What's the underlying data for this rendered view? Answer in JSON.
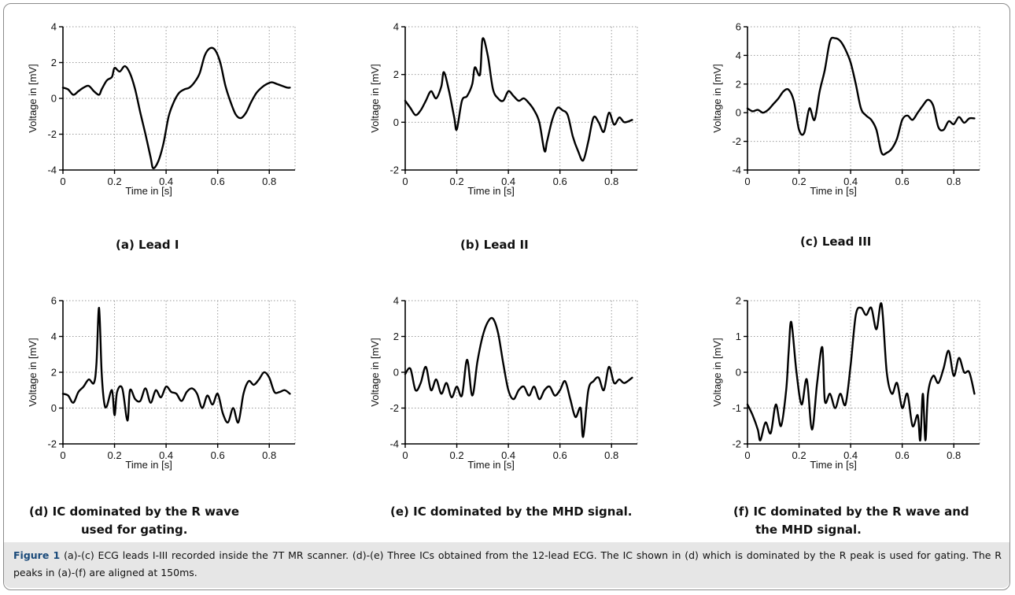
{
  "chart_data": [
    {
      "type": "line",
      "panel": "a",
      "caption": "(a) Lead I",
      "xlabel": "Time in [s]",
      "ylabel": "Voltage in [mV]",
      "xlim": [
        0,
        0.9
      ],
      "ylim": [
        -4,
        4
      ],
      "xticks": [
        0,
        0.2,
        0.4,
        0.6,
        0.8
      ],
      "xtick_labels": [
        "0",
        "0.2",
        "0.4",
        "0.6",
        "0.8"
      ],
      "yticks": [
        -4,
        -2,
        0,
        2,
        4
      ],
      "ytick_labels": [
        "-4",
        "-2",
        "0",
        "2",
        "4"
      ],
      "grid": "dotted",
      "series": [
        {
          "x": [
            0,
            0.02,
            0.04,
            0.06,
            0.08,
            0.1,
            0.12,
            0.14,
            0.15,
            0.17,
            0.19,
            0.2,
            0.22,
            0.24,
            0.26,
            0.28,
            0.3,
            0.32,
            0.34,
            0.35,
            0.37,
            0.39,
            0.41,
            0.43,
            0.45,
            0.47,
            0.49,
            0.51,
            0.53,
            0.55,
            0.57,
            0.59,
            0.61,
            0.63,
            0.65,
            0.67,
            0.69,
            0.71,
            0.73,
            0.75,
            0.77,
            0.79,
            0.81,
            0.83,
            0.85,
            0.87,
            0.88
          ],
          "y": [
            0.6,
            0.5,
            0.2,
            0.4,
            0.6,
            0.7,
            0.4,
            0.2,
            0.5,
            1.0,
            1.2,
            1.7,
            1.5,
            1.8,
            1.4,
            0.5,
            -0.8,
            -2.0,
            -3.3,
            -3.9,
            -3.5,
            -2.5,
            -1.0,
            -0.2,
            0.3,
            0.5,
            0.6,
            0.9,
            1.4,
            2.4,
            2.8,
            2.7,
            2.0,
            0.7,
            -0.2,
            -0.9,
            -1.1,
            -0.8,
            -0.2,
            0.3,
            0.6,
            0.8,
            0.9,
            0.8,
            0.7,
            0.6,
            0.6
          ]
        }
      ]
    },
    {
      "type": "line",
      "panel": "b",
      "caption": "(b) Lead II",
      "xlabel": "Time in [s]",
      "ylabel": "Voltage in [mV]",
      "xlim": [
        0,
        0.9
      ],
      "ylim": [
        -2,
        4
      ],
      "xticks": [
        0,
        0.2,
        0.4,
        0.6,
        0.8
      ],
      "xtick_labels": [
        "0",
        "0.2",
        "0.4",
        "0.6",
        "0.8"
      ],
      "yticks": [
        -2,
        0,
        2,
        4
      ],
      "ytick_labels": [
        "-2",
        "0",
        "2",
        "4"
      ],
      "grid": "dotted",
      "series": [
        {
          "x": [
            0,
            0.02,
            0.04,
            0.06,
            0.08,
            0.1,
            0.12,
            0.14,
            0.15,
            0.17,
            0.19,
            0.2,
            0.22,
            0.24,
            0.26,
            0.27,
            0.29,
            0.3,
            0.32,
            0.34,
            0.36,
            0.38,
            0.4,
            0.42,
            0.44,
            0.46,
            0.48,
            0.5,
            0.52,
            0.54,
            0.55,
            0.57,
            0.59,
            0.61,
            0.63,
            0.65,
            0.67,
            0.69,
            0.71,
            0.73,
            0.75,
            0.77,
            0.79,
            0.81,
            0.83,
            0.85,
            0.88
          ],
          "y": [
            0.9,
            0.6,
            0.3,
            0.5,
            0.9,
            1.3,
            1.0,
            1.5,
            2.1,
            1.3,
            0.2,
            -0.3,
            0.9,
            1.1,
            1.6,
            2.3,
            2.0,
            3.5,
            2.8,
            1.4,
            1.0,
            0.9,
            1.3,
            1.1,
            0.9,
            1.0,
            0.8,
            0.5,
            0.0,
            -1.2,
            -0.8,
            0.1,
            0.6,
            0.5,
            0.3,
            -0.6,
            -1.2,
            -1.6,
            -0.8,
            0.2,
            0.0,
            -0.4,
            0.4,
            -0.1,
            0.2,
            0.0,
            0.1
          ]
        }
      ]
    },
    {
      "type": "line",
      "panel": "c",
      "caption": "(c) Lead III",
      "xlabel": "Time in [s]",
      "ylabel": "Voltage in [mV]",
      "xlim": [
        0,
        0.9
      ],
      "ylim": [
        -4,
        6
      ],
      "xticks": [
        0,
        0.2,
        0.4,
        0.6,
        0.8
      ],
      "xtick_labels": [
        "0",
        "0.2",
        "0.4",
        "0.6",
        "0.8"
      ],
      "yticks": [
        -4,
        -2,
        0,
        2,
        4,
        6
      ],
      "ytick_labels": [
        "-4",
        "-2",
        "0",
        "2",
        "4",
        "6"
      ],
      "grid": "dotted",
      "series": [
        {
          "x": [
            0,
            0.02,
            0.04,
            0.06,
            0.08,
            0.1,
            0.12,
            0.14,
            0.16,
            0.18,
            0.2,
            0.22,
            0.24,
            0.26,
            0.28,
            0.3,
            0.32,
            0.34,
            0.36,
            0.38,
            0.4,
            0.42,
            0.44,
            0.46,
            0.48,
            0.5,
            0.52,
            0.54,
            0.56,
            0.58,
            0.6,
            0.62,
            0.64,
            0.66,
            0.68,
            0.7,
            0.72,
            0.74,
            0.76,
            0.78,
            0.8,
            0.82,
            0.84,
            0.86,
            0.88
          ],
          "y": [
            0.3,
            0.1,
            0.2,
            0.0,
            0.2,
            0.6,
            1.0,
            1.5,
            1.6,
            0.8,
            -1.2,
            -1.4,
            0.3,
            -0.5,
            1.5,
            3.0,
            5.0,
            5.2,
            5.0,
            4.4,
            3.5,
            2.0,
            0.3,
            -0.2,
            -0.5,
            -1.2,
            -2.8,
            -2.8,
            -2.5,
            -1.8,
            -0.5,
            -0.2,
            -0.5,
            0.0,
            0.5,
            0.9,
            0.5,
            -1.0,
            -1.2,
            -0.6,
            -0.8,
            -0.3,
            -0.7,
            -0.4,
            -0.4
          ]
        }
      ]
    },
    {
      "type": "line",
      "panel": "d",
      "caption": "(d) IC dominated by the R wave used for gating.",
      "xlabel": "Time in [s]",
      "ylabel": "Voltage in [mV]",
      "xlim": [
        0,
        0.9
      ],
      "ylim": [
        -2,
        6
      ],
      "xticks": [
        0,
        0.2,
        0.4,
        0.6,
        0.8
      ],
      "xtick_labels": [
        "0",
        "0.2",
        "0.4",
        "0.6",
        "0.8"
      ],
      "yticks": [
        -2,
        0,
        2,
        4,
        6
      ],
      "ytick_labels": [
        "-2",
        "0",
        "2",
        "4",
        "6"
      ],
      "grid": "dotted",
      "series": [
        {
          "x": [
            0,
            0.02,
            0.04,
            0.06,
            0.08,
            0.1,
            0.12,
            0.13,
            0.14,
            0.15,
            0.16,
            0.17,
            0.19,
            0.2,
            0.21,
            0.23,
            0.25,
            0.26,
            0.28,
            0.3,
            0.32,
            0.34,
            0.36,
            0.38,
            0.4,
            0.42,
            0.44,
            0.46,
            0.48,
            0.5,
            0.52,
            0.54,
            0.56,
            0.58,
            0.6,
            0.62,
            0.64,
            0.66,
            0.68,
            0.7,
            0.72,
            0.74,
            0.76,
            0.78,
            0.8,
            0.82,
            0.84,
            0.86,
            0.88
          ],
          "y": [
            0.8,
            0.7,
            0.3,
            0.9,
            1.2,
            1.6,
            1.4,
            2.5,
            5.6,
            2.0,
            0.3,
            0.1,
            1.0,
            -0.4,
            0.9,
            1.1,
            -0.7,
            1.0,
            0.5,
            0.4,
            1.1,
            0.3,
            1.0,
            0.6,
            1.2,
            0.9,
            0.8,
            0.4,
            0.9,
            1.1,
            0.8,
            0.0,
            0.7,
            0.2,
            0.8,
            -0.3,
            -0.8,
            0.0,
            -0.8,
            0.8,
            1.5,
            1.3,
            1.6,
            2.0,
            1.7,
            0.9,
            0.9,
            1.0,
            0.8
          ]
        }
      ]
    },
    {
      "type": "line",
      "panel": "e",
      "caption": "(e) IC dominated by the MHD signal.",
      "xlabel": "Time in [s]",
      "ylabel": "Voltage in [mV]",
      "xlim": [
        0,
        0.9
      ],
      "ylim": [
        -4,
        4
      ],
      "xticks": [
        0,
        0.2,
        0.4,
        0.6,
        0.8
      ],
      "xtick_labels": [
        "0",
        "0.2",
        "0.4",
        "0.6",
        "0.8"
      ],
      "yticks": [
        -4,
        -2,
        0,
        2,
        4
      ],
      "ytick_labels": [
        "-4",
        "-2",
        "0",
        "2",
        "4"
      ],
      "grid": "dotted",
      "series": [
        {
          "x": [
            0,
            0.02,
            0.04,
            0.06,
            0.08,
            0.1,
            0.12,
            0.14,
            0.16,
            0.18,
            0.2,
            0.22,
            0.24,
            0.26,
            0.28,
            0.3,
            0.32,
            0.34,
            0.36,
            0.38,
            0.4,
            0.42,
            0.44,
            0.46,
            0.48,
            0.5,
            0.52,
            0.54,
            0.56,
            0.58,
            0.6,
            0.62,
            0.64,
            0.66,
            0.68,
            0.69,
            0.71,
            0.73,
            0.75,
            0.77,
            0.79,
            0.81,
            0.83,
            0.85,
            0.88
          ],
          "y": [
            -0.1,
            0.2,
            -1.0,
            -0.6,
            0.3,
            -1.0,
            -0.4,
            -1.2,
            -0.6,
            -1.4,
            -0.8,
            -1.3,
            0.7,
            -1.3,
            0.6,
            2.0,
            2.8,
            3.0,
            2.2,
            0.5,
            -1.0,
            -1.5,
            -1.0,
            -0.8,
            -1.3,
            -0.8,
            -1.5,
            -1.0,
            -0.8,
            -1.3,
            -1.0,
            -0.5,
            -1.5,
            -2.5,
            -2.0,
            -3.6,
            -1.0,
            -0.5,
            -0.3,
            -1.0,
            0.3,
            -0.6,
            -0.4,
            -0.6,
            -0.3
          ]
        }
      ]
    },
    {
      "type": "line",
      "panel": "f",
      "caption": "(f) IC dominated by the R wave and the MHD signal.",
      "xlabel": "Time in [s]",
      "ylabel": "Voltage in [mV]",
      "xlim": [
        0,
        0.9
      ],
      "ylim": [
        -2,
        2
      ],
      "xticks": [
        0,
        0.2,
        0.4,
        0.6,
        0.8
      ],
      "xtick_labels": [
        "0",
        "0.2",
        "0.4",
        "0.6",
        "0.8"
      ],
      "yticks": [
        -2,
        -1,
        0,
        1,
        2
      ],
      "ytick_labels": [
        "-2",
        "-1",
        "0",
        "1",
        "2"
      ],
      "grid": "dotted",
      "series": [
        {
          "x": [
            0,
            0.02,
            0.04,
            0.05,
            0.07,
            0.09,
            0.11,
            0.13,
            0.15,
            0.16,
            0.17,
            0.19,
            0.21,
            0.23,
            0.25,
            0.27,
            0.29,
            0.3,
            0.32,
            0.34,
            0.36,
            0.38,
            0.4,
            0.42,
            0.44,
            0.46,
            0.48,
            0.5,
            0.52,
            0.54,
            0.56,
            0.58,
            0.6,
            0.62,
            0.64,
            0.66,
            0.67,
            0.68,
            0.69,
            0.7,
            0.72,
            0.74,
            0.76,
            0.78,
            0.8,
            0.82,
            0.84,
            0.86,
            0.88
          ],
          "y": [
            -0.9,
            -1.2,
            -1.6,
            -1.9,
            -1.4,
            -1.7,
            -0.9,
            -1.5,
            -0.5,
            0.6,
            1.4,
            0.0,
            -0.9,
            -0.2,
            -1.6,
            -0.3,
            0.7,
            -0.8,
            -0.6,
            -1.0,
            -0.6,
            -0.9,
            0.2,
            1.6,
            1.8,
            1.6,
            1.8,
            1.2,
            1.9,
            0.0,
            -0.6,
            -0.3,
            -1.0,
            -0.6,
            -1.5,
            -1.2,
            -1.9,
            -0.6,
            -1.9,
            -0.6,
            -0.1,
            -0.3,
            0.1,
            0.6,
            -0.1,
            0.4,
            0.0,
            0.0,
            -0.6
          ]
        }
      ]
    }
  ],
  "captions": {
    "a": "(a) Lead I",
    "b": "(b) Lead II",
    "c": "(c) Lead III",
    "d_line1": "(d) IC dominated by the R wave",
    "d_line2": "used for gating.",
    "e": "(e) IC dominated by the MHD signal.",
    "f_line1": "(f) IC dominated by the R wave and",
    "f_line2": "the MHD signal."
  },
  "figure_caption": {
    "label": "Figure 1",
    "text": "(a)-(c) ECG leads I-III recorded inside the 7T MR scanner. (d)-(e) Three ICs obtained from the 12-lead ECG. The IC shown in (d) which is dominated by the R peak is used for gating. The R peaks in (a)-(f) are aligned at 150ms."
  },
  "colors": {
    "line": "#000000",
    "grid": "#9a9a9a",
    "caption_background": "#e6e6e6",
    "figure_label": "#1a4a7a"
  }
}
